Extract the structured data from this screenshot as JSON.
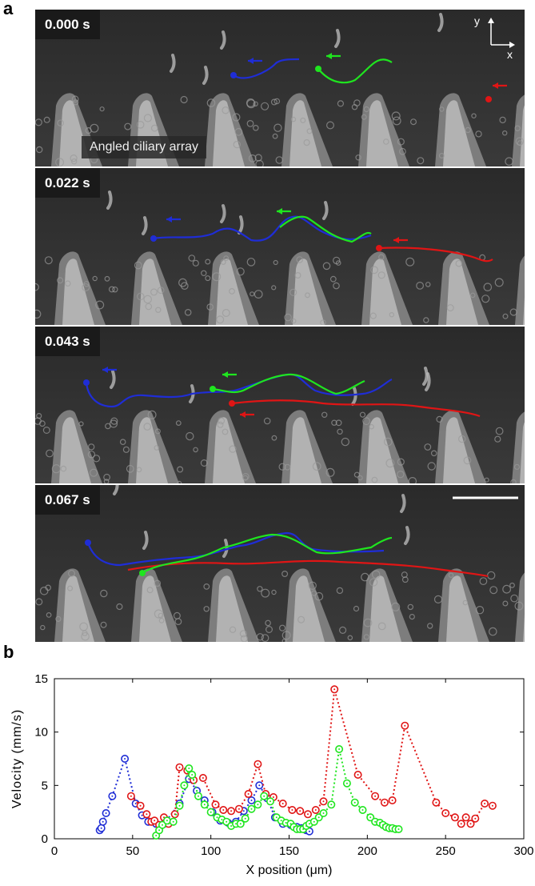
{
  "panel_a": {
    "letter": "a",
    "frames": [
      {
        "time": "0.000 s"
      },
      {
        "time": "0.022 s"
      },
      {
        "time": "0.043 s"
      },
      {
        "time": "0.067 s"
      }
    ],
    "array_label": "Angled ciliary array",
    "axis_y": "y",
    "axis_x": "x",
    "colors": {
      "blue": "#1f2dd6",
      "green": "#1fe51f",
      "red": "#e01515"
    }
  },
  "panel_b": {
    "letter": "b"
  },
  "chart_data": {
    "type": "scatter",
    "xlabel": "X position (μm)",
    "ylabel": "Velocity (mm/s)",
    "xlim": [
      0,
      300
    ],
    "ylim": [
      0,
      15
    ],
    "xticks": [
      0,
      50,
      100,
      150,
      200,
      250,
      300
    ],
    "yticks": [
      0,
      5,
      10,
      15
    ],
    "line_style": "dotted with circle markers",
    "series": [
      {
        "color": "#1f2dd6",
        "x": [
          29,
          30,
          31,
          33,
          37,
          45,
          52,
          56,
          60,
          65,
          70,
          80,
          86,
          91,
          96,
          101,
          106,
          111,
          116,
          121,
          126,
          131,
          136,
          141,
          146,
          151,
          155,
          158,
          161,
          163
        ],
        "y": [
          0.8,
          1.0,
          1.6,
          2.4,
          4.0,
          7.5,
          3.3,
          2.2,
          1.6,
          1.4,
          1.4,
          3.3,
          5.6,
          4.5,
          3.6,
          2.5,
          1.7,
          1.5,
          1.6,
          2.6,
          3.6,
          5.0,
          3.8,
          2.0,
          1.4,
          1.3,
          1.1,
          1.0,
          0.8,
          0.7
        ]
      },
      {
        "color": "#e01515",
        "x": [
          49,
          55,
          59,
          62,
          64,
          67,
          70,
          73,
          77,
          80,
          85,
          89,
          95,
          103,
          108,
          113,
          118,
          124,
          130,
          135,
          140,
          146,
          152,
          157,
          162,
          167,
          172,
          179,
          194,
          205,
          211,
          216,
          224,
          244,
          250,
          256,
          260,
          263,
          266,
          269,
          275,
          280
        ],
        "y": [
          4.0,
          3.1,
          2.3,
          1.6,
          1.7,
          1.3,
          2.0,
          1.4,
          2.3,
          6.7,
          6.4,
          5.5,
          5.7,
          3.2,
          2.7,
          2.6,
          2.8,
          4.2,
          7.0,
          4.2,
          3.9,
          3.3,
          2.7,
          2.6,
          2.3,
          2.7,
          3.5,
          14.0,
          6.0,
          4.0,
          3.4,
          3.6,
          10.6,
          3.4,
          2.4,
          2.0,
          1.4,
          2.0,
          1.4,
          1.9,
          3.3,
          3.1
        ]
      },
      {
        "color": "#1fe51f",
        "x": [
          65,
          67,
          69,
          72,
          76,
          80,
          83,
          86,
          88,
          92,
          96,
          100,
          104,
          107,
          110,
          113,
          116,
          119,
          122,
          126,
          130,
          134,
          138,
          142,
          145,
          148,
          151,
          153,
          155,
          157,
          159,
          161,
          163,
          166,
          169,
          172,
          177,
          182,
          187,
          192,
          197,
          202,
          205,
          208,
          210,
          212,
          214,
          216,
          218,
          220
        ],
        "y": [
          0.3,
          0.8,
          1.3,
          1.7,
          1.6,
          3.1,
          5.0,
          6.6,
          6.0,
          4.0,
          3.2,
          2.5,
          2.0,
          1.8,
          1.6,
          1.2,
          1.4,
          1.4,
          1.9,
          2.8,
          3.2,
          4.0,
          3.5,
          2.0,
          1.7,
          1.5,
          1.4,
          1.1,
          0.9,
          0.9,
          0.9,
          1.2,
          1.4,
          1.6,
          2.0,
          2.4,
          3.2,
          8.4,
          5.2,
          3.4,
          2.7,
          2.0,
          1.6,
          1.5,
          1.3,
          1.1,
          1.0,
          1.0,
          0.9,
          0.9
        ]
      }
    ]
  }
}
